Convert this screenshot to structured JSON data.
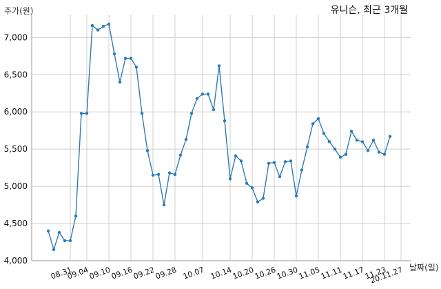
{
  "chart_data": {
    "type": "line",
    "title": "유니슨, 최근 3개월",
    "ylabel": "주가(원)",
    "xlabel": "날짜(일)",
    "ylim": [
      4000,
      7300
    ],
    "yticks": [
      4000,
      4500,
      5000,
      5500,
      6000,
      6500,
      7000
    ],
    "ytick_labels": [
      "4,000",
      "4,500",
      "5,000",
      "5,500",
      "6,000",
      "6,500",
      "7,000"
    ],
    "xtick_labels": [
      "08.31",
      "09.04",
      "09.10",
      "09.16",
      "09.22",
      "09.28",
      "10.07",
      "10.14",
      "10.20",
      "10.26",
      "10.30",
      "11.05",
      "11.11",
      "11.17",
      "11.23",
      "20.11.27"
    ],
    "xtick_index": [
      4,
      7,
      11,
      15,
      19,
      23,
      28,
      33,
      37,
      41,
      45,
      49,
      53,
      57,
      61,
      64
    ],
    "grid": true,
    "series": [
      {
        "color": "#2c7bb6",
        "values": [
          4400,
          4150,
          4380,
          4270,
          4270,
          4600,
          5980,
          5980,
          7160,
          7100,
          7150,
          7180,
          6780,
          6400,
          6720,
          6720,
          6600,
          5980,
          5480,
          5150,
          5160,
          4750,
          5180,
          5160,
          5420,
          5630,
          5980,
          6180,
          6240,
          6240,
          6030,
          6620,
          5880,
          5100,
          5410,
          5340,
          5040,
          4980,
          4790,
          4840,
          5310,
          5320,
          5130,
          5330,
          5340,
          4870,
          5220,
          5530,
          5840,
          5910,
          5710,
          5600,
          5500,
          5390,
          5430,
          5740,
          5620,
          5600,
          5480,
          5620,
          5460,
          5430,
          5670
        ]
      }
    ]
  }
}
